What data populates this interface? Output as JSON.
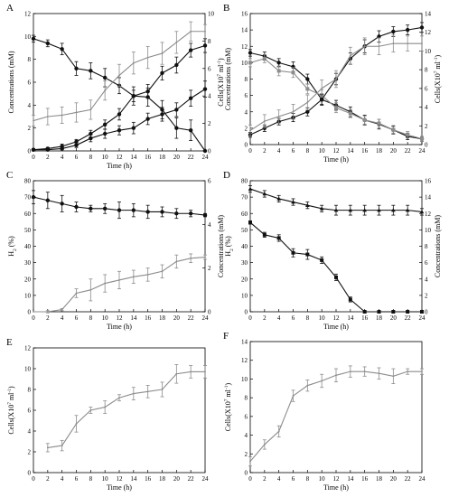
{
  "colors": {
    "black_series": "#111111",
    "gray_series": "#8c8c8c",
    "axis": "#000000"
  },
  "chart_data": [
    {
      "panel": "A",
      "type": "line",
      "x": [
        0,
        2,
        4,
        6,
        8,
        10,
        12,
        14,
        16,
        18,
        20,
        22,
        24
      ],
      "xlabel": "Time (h)",
      "xlim": [
        0,
        24
      ],
      "ylabel": "Concentrations (mM)",
      "ylim": [
        0,
        12
      ],
      "ylabel_right": "Cells(X10^7 ml^-1)",
      "ylim_right": [
        0,
        10
      ],
      "series": [
        {
          "axis": "left",
          "color": "black",
          "marker": "filled-circle",
          "values": [
            9.8,
            9.4,
            8.9,
            7.2,
            7.0,
            6.4,
            5.7,
            4.8,
            4.7,
            3.6,
            2.0,
            1.8,
            0.0
          ],
          "err": [
            0.3,
            0.3,
            0.5,
            0.6,
            0.7,
            0.8,
            0.7,
            0.8,
            0.8,
            0.8,
            0.9,
            0.9,
            0.0
          ]
        },
        {
          "axis": "left",
          "color": "black",
          "marker": "filled-circle",
          "values": [
            0.1,
            0.1,
            0.2,
            0.5,
            1.1,
            1.5,
            1.8,
            2.0,
            2.8,
            3.2,
            3.6,
            4.6,
            5.4
          ],
          "err": [
            0.1,
            0.1,
            0.1,
            0.2,
            0.3,
            0.4,
            0.4,
            0.5,
            0.5,
            0.6,
            0.6,
            0.7,
            0.7
          ]
        },
        {
          "axis": "left",
          "color": "black",
          "marker": "filled-circle",
          "values": [
            0.1,
            0.2,
            0.4,
            0.8,
            1.5,
            2.3,
            3.2,
            4.8,
            5.2,
            6.8,
            7.5,
            8.8,
            9.2
          ],
          "err": [
            0.1,
            0.1,
            0.2,
            0.2,
            0.3,
            0.4,
            0.5,
            0.5,
            0.6,
            0.6,
            0.7,
            0.6,
            0.6
          ]
        },
        {
          "axis": "right",
          "color": "gray",
          "marker": "none",
          "values": [
            2.2,
            2.5,
            2.6,
            2.8,
            3.0,
            4.4,
            5.5,
            6.4,
            6.8,
            7.1,
            7.9,
            8.7,
            8.7
          ],
          "err": [
            0.4,
            0.6,
            0.6,
            0.7,
            0.7,
            0.7,
            0.8,
            0.8,
            0.8,
            0.8,
            0.8,
            0.7,
            0.5
          ]
        }
      ]
    },
    {
      "panel": "B",
      "type": "line",
      "x": [
        0,
        2,
        4,
        6,
        8,
        10,
        12,
        14,
        16,
        18,
        20,
        22,
        24
      ],
      "xlabel": "Time (h)",
      "xlim": [
        0,
        24
      ],
      "ylabel": "Concentrations (mM)",
      "ylim": [
        0,
        16
      ],
      "ylabel_right": "Cells(X10^7 ml^-1)",
      "ylim_right": [
        0,
        14
      ],
      "series": [
        {
          "axis": "left",
          "color": "black",
          "marker": "filled-circle",
          "values": [
            11.2,
            10.8,
            10.0,
            9.5,
            8.0,
            5.5,
            4.8,
            4.0,
            3.0,
            2.5,
            1.8,
            1.0,
            0.7
          ],
          "err": [
            0.4,
            0.5,
            0.5,
            0.6,
            0.6,
            0.7,
            0.6,
            0.6,
            0.6,
            0.6,
            0.5,
            0.4,
            0.3
          ]
        },
        {
          "axis": "left",
          "color": "gray",
          "marker": "filled-square",
          "values": [
            10.0,
            10.5,
            9.0,
            8.8,
            6.8,
            6.0,
            4.5,
            3.8,
            3.0,
            2.6,
            1.8,
            1.2,
            0.7
          ],
          "err": [
            0.5,
            0.5,
            0.6,
            0.6,
            0.6,
            0.7,
            0.6,
            0.5,
            0.5,
            0.5,
            0.4,
            0.4,
            0.3
          ]
        },
        {
          "axis": "left",
          "color": "black",
          "marker": "filled-circle",
          "values": [
            1.2,
            2.0,
            2.8,
            3.3,
            4.0,
            5.5,
            8.0,
            10.5,
            12.0,
            13.2,
            13.8,
            14.0,
            14.3
          ],
          "err": [
            0.3,
            0.4,
            0.4,
            0.5,
            0.5,
            0.6,
            0.7,
            0.7,
            0.8,
            0.7,
            0.6,
            0.6,
            0.6
          ]
        },
        {
          "axis": "right",
          "color": "gray",
          "marker": "none",
          "values": [
            1.5,
            2.5,
            3.0,
            3.5,
            4.5,
            6.0,
            7.0,
            9.5,
            10.5,
            10.5,
            10.8,
            10.8,
            10.8
          ],
          "err": [
            0.6,
            0.7,
            0.7,
            0.8,
            0.8,
            0.9,
            0.9,
            0.9,
            0.9,
            0.9,
            0.9,
            0.8,
            0.8
          ]
        }
      ]
    },
    {
      "panel": "C",
      "type": "line",
      "x": [
        0,
        2,
        4,
        6,
        8,
        10,
        12,
        14,
        16,
        18,
        20,
        22,
        24
      ],
      "xlabel": "Time (h)",
      "xlim": [
        0,
        24
      ],
      "ylabel": "H2 (%)",
      "ylim": [
        0,
        80
      ],
      "ylabel_right": "Concentrations (mM)",
      "ylim_right": [
        0,
        6
      ],
      "series": [
        {
          "axis": "left",
          "color": "black",
          "marker": "filled-circle",
          "values": [
            70,
            68,
            66,
            64,
            63,
            63,
            62,
            62,
            61,
            61,
            60,
            60,
            59
          ],
          "err": [
            4,
            5,
            5,
            3,
            2,
            3,
            5,
            4,
            4,
            3,
            3,
            2,
            1
          ]
        },
        {
          "axis": "right",
          "color": "gray",
          "marker": "none",
          "values": [
            0.0,
            0.0,
            0.1,
            0.85,
            1.0,
            1.3,
            1.45,
            1.6,
            1.7,
            1.85,
            2.3,
            2.45,
            2.5
          ],
          "err": [
            0.0,
            0.05,
            0.05,
            0.2,
            0.5,
            0.4,
            0.4,
            0.3,
            0.3,
            0.3,
            0.3,
            0.2,
            0.1
          ]
        }
      ]
    },
    {
      "panel": "D",
      "type": "line",
      "x": [
        0,
        2,
        4,
        6,
        8,
        10,
        12,
        14,
        16,
        18,
        20,
        22,
        24
      ],
      "xlabel": "Time (h)",
      "xlim": [
        0,
        24
      ],
      "ylabel": "H2 (%)",
      "ylim": [
        0,
        80
      ],
      "ylabel_right": "Concentrations (mM)",
      "ylim_right": [
        0,
        16
      ],
      "series": [
        {
          "axis": "left",
          "color": "black",
          "marker": "filled-triangle",
          "values": [
            75,
            72,
            69,
            67,
            65,
            63,
            62,
            62,
            62,
            62,
            62,
            62,
            61
          ],
          "err": [
            2,
            2,
            2,
            2,
            2,
            2,
            3,
            3,
            3,
            3,
            3,
            3,
            2
          ]
        },
        {
          "axis": "right",
          "color": "black",
          "marker": "filled-square",
          "values": [
            10.9,
            9.4,
            9.0,
            7.2,
            7.0,
            6.3,
            4.2,
            1.5,
            0.0,
            0.0,
            0.0,
            0.0,
            0.0
          ],
          "err": [
            0.2,
            0.3,
            0.4,
            0.5,
            0.6,
            0.4,
            0.4,
            0.3,
            0.0,
            0.0,
            0.0,
            0.0,
            0.0
          ]
        }
      ]
    },
    {
      "panel": "E",
      "type": "line",
      "x": [
        0,
        2,
        4,
        6,
        8,
        10,
        12,
        14,
        16,
        18,
        20,
        22,
        24
      ],
      "xlabel": "Time (h)",
      "xlim": [
        0,
        24
      ],
      "ylabel": "Cells(X10^7 ml^-1)",
      "ylim": [
        0,
        12
      ],
      "series": [
        {
          "axis": "left",
          "color": "gray",
          "marker": "none",
          "x": [
            2,
            4,
            6,
            8,
            10,
            12,
            14,
            16,
            18,
            20,
            22,
            24
          ],
          "values": [
            2.4,
            2.6,
            4.7,
            6.0,
            6.3,
            7.2,
            7.6,
            7.8,
            8.0,
            9.5,
            9.7,
            9.7
          ],
          "err": [
            0.4,
            0.5,
            0.8,
            0.3,
            0.6,
            0.3,
            0.6,
            0.6,
            0.7,
            0.9,
            0.6,
            0.6
          ]
        }
      ]
    },
    {
      "panel": "F",
      "type": "line",
      "x": [
        0,
        2,
        4,
        6,
        8,
        10,
        12,
        14,
        16,
        18,
        20,
        22,
        24
      ],
      "xlabel": "Time (h)",
      "xlim": [
        0,
        24
      ],
      "ylabel": "Cells(X10^7 ml^-1)",
      "ylim": [
        0,
        14
      ],
      "series": [
        {
          "axis": "left",
          "color": "gray",
          "marker": "none",
          "values": [
            1.2,
            3.0,
            4.4,
            8.2,
            9.3,
            9.8,
            10.4,
            10.8,
            10.8,
            10.6,
            10.3,
            10.8,
            10.8
          ],
          "err": [
            0.5,
            0.5,
            0.6,
            0.6,
            0.6,
            0.7,
            0.7,
            0.6,
            0.5,
            0.6,
            0.8,
            0.3,
            0.3
          ]
        }
      ]
    }
  ]
}
